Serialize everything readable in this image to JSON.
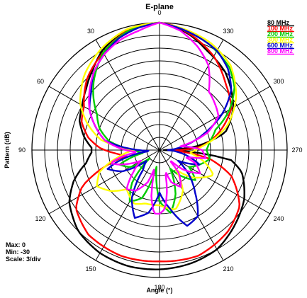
{
  "chart_data": {
    "type": "polar",
    "title": "E-plane",
    "xlabel": "Angle (°)",
    "ylabel": "Pattern (dB)",
    "angle_direction": "clockwise",
    "zero_at": "top",
    "angle_labels": [
      "0",
      "30",
      "60",
      "90",
      "120",
      "150",
      "180",
      "210",
      "240",
      "270",
      "300",
      "330"
    ],
    "legend_placement": "top-right",
    "stats": {
      "max_label": "Max: 0",
      "min_label": "Min: -30",
      "scale_label": "Scale: 3/div"
    },
    "r_range": [
      -30,
      0
    ],
    "r_div_db": 3,
    "series": [
      {
        "name": "80 MHz",
        "color": "#000000",
        "points": [
          [
            0,
            0
          ],
          [
            15,
            -0.5
          ],
          [
            30,
            -3
          ],
          [
            40,
            -5.5
          ],
          [
            50,
            -7.5
          ],
          [
            60,
            -9
          ],
          [
            70,
            -10
          ],
          [
            80,
            -12
          ],
          [
            88,
            -14
          ],
          [
            92,
            -14
          ],
          [
            100,
            -12.5
          ],
          [
            110,
            -8.5
          ],
          [
            120,
            -5.5
          ],
          [
            135,
            -3
          ],
          [
            150,
            -2
          ],
          [
            165,
            -1.7
          ],
          [
            180,
            -1.9
          ],
          [
            195,
            -2.3
          ],
          [
            210,
            -3
          ],
          [
            225,
            -5
          ],
          [
            240,
            -7
          ],
          [
            255,
            -10
          ],
          [
            262,
            -13
          ],
          [
            268,
            -25
          ],
          [
            270,
            -29
          ],
          [
            275,
            -22
          ],
          [
            285,
            -14
          ],
          [
            300,
            -10
          ],
          [
            310,
            -8
          ],
          [
            320,
            -6
          ],
          [
            335,
            -4
          ],
          [
            345,
            -2
          ],
          [
            355,
            -0.5
          ]
        ]
      },
      {
        "name": "100 MHz",
        "color": "#ff0000",
        "points": [
          [
            0,
            0
          ],
          [
            15,
            -0.8
          ],
          [
            30,
            -3.5
          ],
          [
            45,
            -6
          ],
          [
            60,
            -9.5
          ],
          [
            70,
            -10.5
          ],
          [
            80,
            -13
          ],
          [
            88,
            -16
          ],
          [
            95,
            -20
          ],
          [
            100,
            -22
          ],
          [
            105,
            -18
          ],
          [
            115,
            -10
          ],
          [
            125,
            -6
          ],
          [
            140,
            -4
          ],
          [
            160,
            -3.5
          ],
          [
            180,
            -3.8
          ],
          [
            200,
            -3.5
          ],
          [
            220,
            -5
          ],
          [
            235,
            -7
          ],
          [
            250,
            -12
          ],
          [
            260,
            -18
          ],
          [
            268,
            -27
          ],
          [
            275,
            -20
          ],
          [
            285,
            -16
          ],
          [
            300,
            -10.5
          ],
          [
            315,
            -8
          ],
          [
            330,
            -4.5
          ],
          [
            345,
            -1.8
          ],
          [
            355,
            -0.3
          ]
        ]
      },
      {
        "name": "200 MHz",
        "color": "#00cc00",
        "points": [
          [
            0,
            0
          ],
          [
            15,
            -1
          ],
          [
            30,
            -3.5
          ],
          [
            45,
            -8
          ],
          [
            60,
            -13
          ],
          [
            70,
            -15
          ],
          [
            80,
            -18
          ],
          [
            90,
            -24
          ],
          [
            100,
            -26
          ],
          [
            110,
            -20
          ],
          [
            120,
            -22
          ],
          [
            130,
            -27
          ],
          [
            140,
            -20
          ],
          [
            150,
            -16
          ],
          [
            160,
            -18
          ],
          [
            170,
            -26
          ],
          [
            180,
            -18
          ],
          [
            190,
            -15
          ],
          [
            200,
            -19
          ],
          [
            210,
            -25
          ],
          [
            220,
            -22
          ],
          [
            230,
            -19
          ],
          [
            240,
            -22
          ],
          [
            250,
            -20
          ],
          [
            260,
            -18
          ],
          [
            270,
            -19
          ],
          [
            280,
            -18
          ],
          [
            290,
            -16
          ],
          [
            300,
            -11
          ],
          [
            310,
            -7
          ],
          [
            320,
            -4.5
          ],
          [
            335,
            -2.5
          ],
          [
            345,
            -1.5
          ],
          [
            355,
            -0.5
          ]
        ]
      },
      {
        "name": "300 MHz",
        "color": "#ffff00",
        "points": [
          [
            0,
            0
          ],
          [
            15,
            -0.5
          ],
          [
            30,
            -2.5
          ],
          [
            45,
            -5
          ],
          [
            60,
            -8.5
          ],
          [
            70,
            -12
          ],
          [
            80,
            -16
          ],
          [
            90,
            -24
          ],
          [
            100,
            -20
          ],
          [
            110,
            -15
          ],
          [
            120,
            -13
          ],
          [
            130,
            -15
          ],
          [
            140,
            -18
          ],
          [
            155,
            -16
          ],
          [
            165,
            -17
          ],
          [
            180,
            -17
          ],
          [
            195,
            -15.5
          ],
          [
            210,
            -19
          ],
          [
            220,
            -24
          ],
          [
            230,
            -20
          ],
          [
            245,
            -16
          ],
          [
            255,
            -19
          ],
          [
            265,
            -23
          ],
          [
            275,
            -20
          ],
          [
            290,
            -13
          ],
          [
            305,
            -8
          ],
          [
            320,
            -4
          ],
          [
            335,
            -2
          ],
          [
            350,
            -0.8
          ]
        ]
      },
      {
        "name": "600 MHz",
        "color": "#0000cc",
        "points": [
          [
            0,
            0
          ],
          [
            10,
            -0.8
          ],
          [
            20,
            -2
          ],
          [
            30,
            -4
          ],
          [
            40,
            -6
          ],
          [
            50,
            -9
          ],
          [
            60,
            -11
          ],
          [
            70,
            -14
          ],
          [
            80,
            -17
          ],
          [
            85,
            -21
          ],
          [
            90,
            -25
          ],
          [
            95,
            -28
          ],
          [
            100,
            -24
          ],
          [
            105,
            -20
          ],
          [
            110,
            -17
          ],
          [
            120,
            -20
          ],
          [
            130,
            -26
          ],
          [
            140,
            -24
          ],
          [
            150,
            -17
          ],
          [
            160,
            -13
          ],
          [
            170,
            -15
          ],
          [
            180,
            -20
          ],
          [
            190,
            -16
          ],
          [
            200,
            -11
          ],
          [
            210,
            -12
          ],
          [
            220,
            -17
          ],
          [
            230,
            -21
          ],
          [
            240,
            -25
          ],
          [
            250,
            -20
          ],
          [
            260,
            -24
          ],
          [
            270,
            -28
          ],
          [
            280,
            -24
          ],
          [
            290,
            -19
          ],
          [
            300,
            -13
          ],
          [
            310,
            -8
          ],
          [
            320,
            -5
          ],
          [
            330,
            -3
          ],
          [
            340,
            -2
          ],
          [
            350,
            -1
          ]
        ]
      },
      {
        "name": "800 MHz",
        "color": "#ff00ff",
        "points": [
          [
            0,
            0
          ],
          [
            10,
            -1.5
          ],
          [
            20,
            -2.5
          ],
          [
            30,
            -4
          ],
          [
            40,
            -6
          ],
          [
            50,
            -8.5
          ],
          [
            60,
            -11
          ],
          [
            70,
            -14
          ],
          [
            80,
            -17
          ],
          [
            90,
            -22
          ],
          [
            95,
            -25
          ],
          [
            100,
            -21
          ],
          [
            105,
            -18
          ],
          [
            110,
            -20
          ],
          [
            120,
            -25
          ],
          [
            130,
            -22
          ],
          [
            140,
            -18
          ],
          [
            150,
            -19
          ],
          [
            160,
            -22
          ],
          [
            165,
            -26
          ],
          [
            170,
            -19
          ],
          [
            175,
            -15
          ],
          [
            180,
            -15
          ],
          [
            185,
            -16
          ],
          [
            190,
            -20
          ],
          [
            195,
            -25
          ],
          [
            200,
            -22
          ],
          [
            210,
            -20
          ],
          [
            220,
            -23
          ],
          [
            225,
            -27
          ],
          [
            230,
            -23
          ],
          [
            240,
            -19
          ],
          [
            250,
            -21
          ],
          [
            255,
            -24
          ],
          [
            260,
            -19
          ],
          [
            270,
            -20
          ],
          [
            280,
            -25
          ],
          [
            290,
            -18
          ],
          [
            300,
            -14
          ],
          [
            310,
            -13
          ],
          [
            320,
            -12
          ],
          [
            330,
            -7
          ],
          [
            340,
            -4
          ],
          [
            350,
            -1.5
          ]
        ]
      }
    ]
  }
}
